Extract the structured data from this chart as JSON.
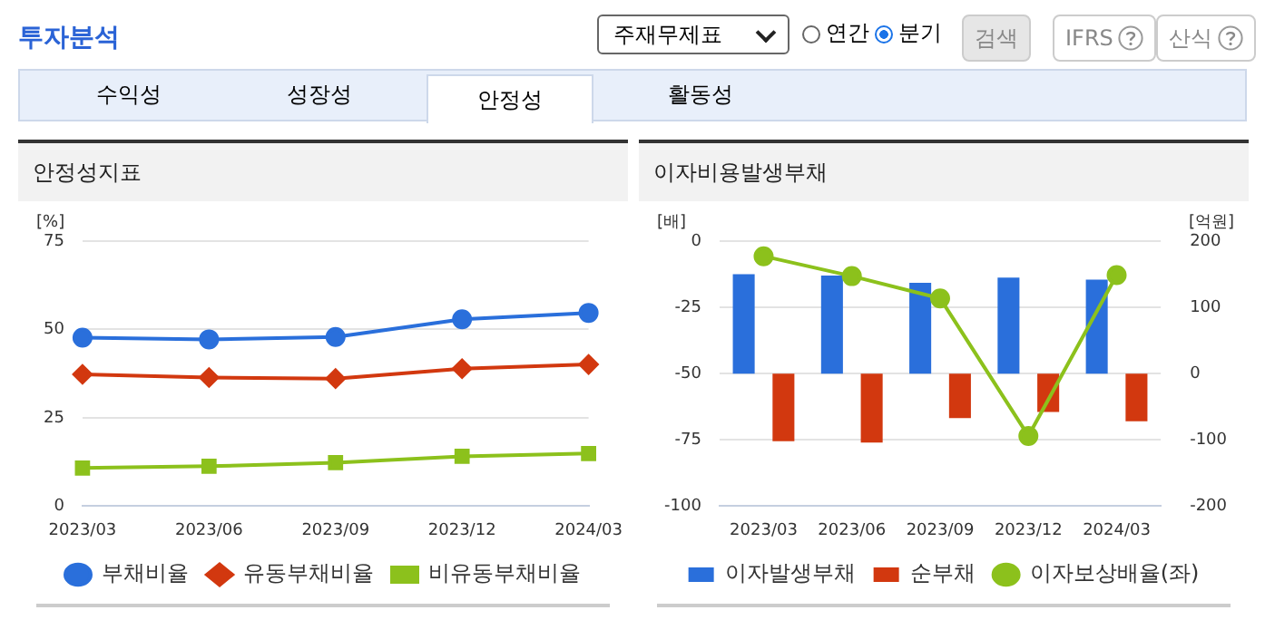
{
  "chart_data": [
    {
      "type": "other",
      "title": "투자분석",
      "annotations": [
        "주재무제표",
        "연간",
        "분기",
        "검색",
        "IFRS",
        "산식",
        "수익성",
        "성장성",
        "안정성",
        "활동성"
      ]
    },
    {
      "type": "line",
      "title": "안정성지표",
      "ylabel": "[%]",
      "categories": [
        "2023/03",
        "2023/06",
        "2023/09",
        "2023/12",
        "2024/03"
      ],
      "ylim": [
        0,
        75
      ],
      "yticks": [
        0,
        25,
        50,
        75
      ],
      "grid": "y",
      "legend": "bottom",
      "series": [
        {
          "name": "부채비율",
          "color": "#2a6fdb",
          "marker": "circle",
          "values": [
            47.7,
            47.2,
            47.9,
            52.9,
            54.7
          ]
        },
        {
          "name": "유동부채비율",
          "color": "#d2380f",
          "marker": "diamond",
          "values": [
            37.3,
            36.4,
            36.1,
            38.9,
            40.1
          ]
        },
        {
          "name": "비유동부채비율",
          "color": "#8cc11c",
          "marker": "square",
          "values": [
            10.8,
            11.3,
            12.3,
            14.1,
            14.9
          ]
        }
      ]
    },
    {
      "type": "bar",
      "title": "이자비용발생부채",
      "ylabel": "[배]",
      "y2label": "[억원]",
      "categories": [
        "2023/03",
        "2023/06",
        "2023/09",
        "2023/12",
        "2024/03"
      ],
      "ylim": [
        -100,
        0
      ],
      "yticks": [
        -100,
        -75,
        -50,
        -25,
        0
      ],
      "y2lim": [
        -200,
        200
      ],
      "y2ticks": [
        -200,
        -100,
        0,
        100,
        200
      ],
      "grid": "y",
      "legend": "bottom",
      "series": [
        {
          "name": "이자발생부채",
          "color": "#2a6fdb",
          "axis": "y2",
          "values": [
            150,
            148,
            137,
            145,
            142
          ]
        },
        {
          "name": "순부채",
          "color": "#d2380f",
          "axis": "y2",
          "values": [
            -102,
            -104,
            -67,
            -58,
            -72
          ]
        },
        {
          "name": "이자보상배율(좌)",
          "type": "line",
          "color": "#8cc11c",
          "marker": "circle",
          "values": [
            -5.7,
            -13.2,
            -21.6,
            -73.5,
            -12.8
          ]
        }
      ]
    }
  ]
}
